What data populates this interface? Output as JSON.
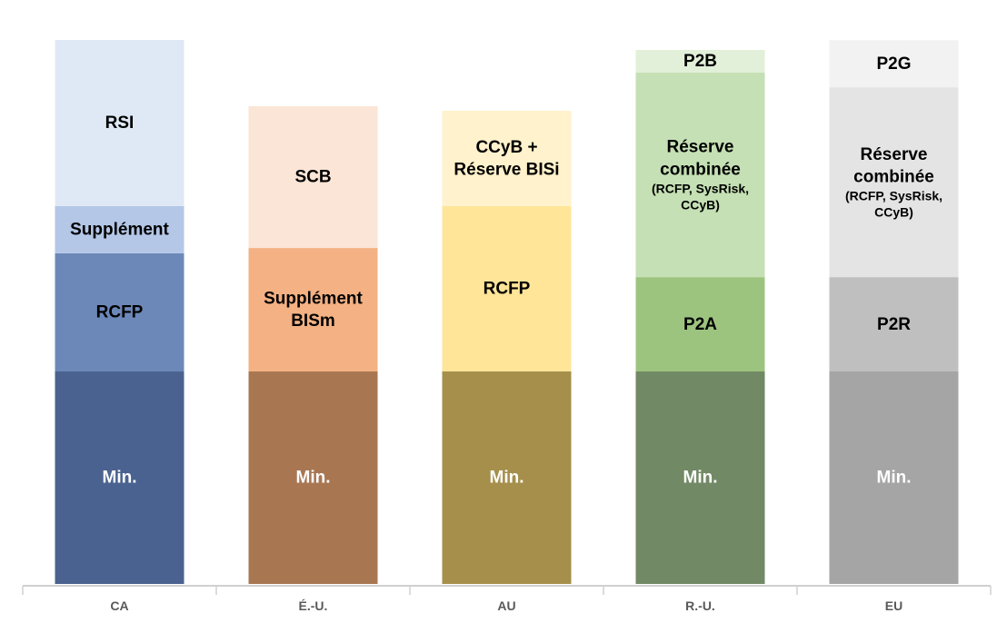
{
  "chart_data": {
    "type": "bar",
    "stacked": true,
    "title": "",
    "xlabel": "",
    "ylabel": "",
    "y_axis_shown": false,
    "grid": false,
    "ylim": [
      0,
      256
    ],
    "categories": [
      "CA",
      "É.-U.",
      "AU",
      "R.-U.",
      "EU"
    ],
    "stacks": [
      {
        "category": "CA",
        "segments": [
          {
            "label": [
              "Min."
            ],
            "value": 100,
            "color": "#4a628f",
            "text_color": "#ffffff"
          },
          {
            "label": [
              "RCFP"
            ],
            "value": 55.6,
            "color": "#6c88b8",
            "text_color": "#000000"
          },
          {
            "label": [
              "Supplément"
            ],
            "value": 22.2,
            "color": "#b4c7e7",
            "text_color": "#000000"
          },
          {
            "label": [
              "RSI"
            ],
            "value": 78.2,
            "color": "#dfe9f5",
            "text_color": "#000000"
          }
        ]
      },
      {
        "category": "É.-U.",
        "segments": [
          {
            "label": [
              "Min."
            ],
            "value": 100,
            "color": "#a87752",
            "text_color": "#ffffff"
          },
          {
            "label": [
              "Supplément",
              "BISm"
            ],
            "value": 58.1,
            "color": "#f4b183",
            "text_color": "#000000"
          },
          {
            "label": [
              "SCB"
            ],
            "value": 66.7,
            "color": "#fbe5d6",
            "text_color": "#000000"
          }
        ]
      },
      {
        "category": "AU",
        "segments": [
          {
            "label": [
              "Min."
            ],
            "value": 100,
            "color": "#a58f4b",
            "text_color": "#ffffff"
          },
          {
            "label": [
              "RCFP"
            ],
            "value": 77.8,
            "color": "#ffe598",
            "text_color": "#000000"
          },
          {
            "label": [
              "CCyB +",
              "Réserve BISi"
            ],
            "value": 44.9,
            "color": "#fff2cc",
            "text_color": "#000000"
          }
        ]
      },
      {
        "category": "R.-U.",
        "segments": [
          {
            "label": [
              "Min."
            ],
            "value": 100,
            "color": "#728965",
            "text_color": "#ffffff"
          },
          {
            "label": [
              "P2A"
            ],
            "value": 44.4,
            "color": "#9dc47f",
            "text_color": "#000000"
          },
          {
            "label": [
              "Réserve",
              "combinée"
            ],
            "sublabel": [
              "(RCFP, SysRisk,",
              "CCyB)"
            ],
            "value": 96.2,
            "color": "#c5e0b4",
            "text_color": "#000000"
          },
          {
            "label": [
              "P2B"
            ],
            "value": 10.7,
            "color": "#e2f0d9",
            "text_color": "#000000"
          }
        ]
      },
      {
        "category": "EU",
        "segments": [
          {
            "label": [
              "Min."
            ],
            "value": 100,
            "color": "#a5a5a5",
            "text_color": "#ffffff"
          },
          {
            "label": [
              "P2R"
            ],
            "value": 44.4,
            "color": "#bfbfbf",
            "text_color": "#000000"
          },
          {
            "label": [
              "Réserve",
              "combinée"
            ],
            "sublabel": [
              "(RCFP, SysRisk,",
              "CCyB)"
            ],
            "value": 89.3,
            "color": "#e4e4e4",
            "text_color": "#000000"
          },
          {
            "label": [
              "P2G"
            ],
            "value": 22.2,
            "color": "#f2f2f2",
            "text_color": "#000000"
          }
        ]
      }
    ],
    "axis_color": "#d0d0d0",
    "tick_label_color": "#595959"
  }
}
